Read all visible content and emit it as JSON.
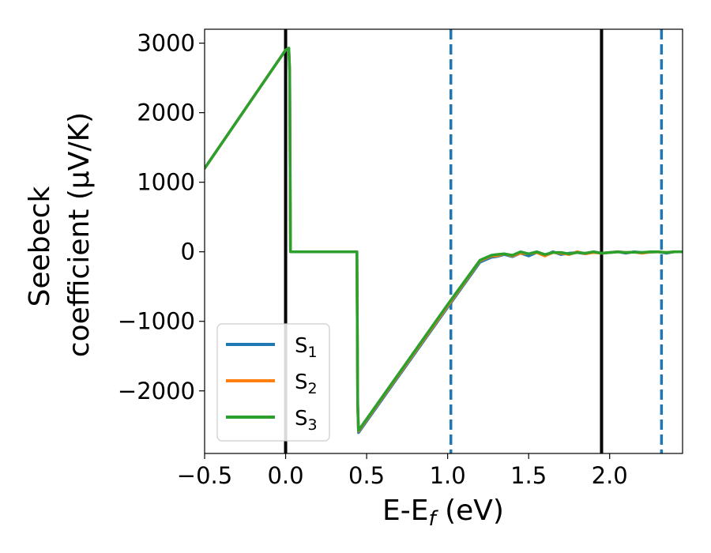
{
  "chart_data": {
    "type": "line",
    "xlabel": "E-E",
    "xlabel_sub": "f",
    "xlabel_unit": " (eV)",
    "ylabel_line1": "Seebeck",
    "ylabel_line2": "coefficient  (μV/K)",
    "xlim": [
      -0.5,
      2.45
    ],
    "ylim": [
      -2900,
      3200
    ],
    "x_ticks": [
      -0.5,
      0.0,
      0.5,
      1.0,
      1.5,
      2.0
    ],
    "x_tick_labels": [
      "−0.5",
      "0.0",
      "0.5",
      "1.0",
      "1.5",
      "2.0"
    ],
    "y_ticks": [
      3000,
      2000,
      1000,
      0,
      -1000,
      -2000
    ],
    "y_tick_labels": [
      "3000",
      "2000",
      "1000",
      "0",
      "−1000",
      "−2000"
    ],
    "grid": false,
    "legend_position": "lower-left",
    "vertical_lines": [
      {
        "x": 0.0,
        "style": "solid",
        "color": "#000000"
      },
      {
        "x": 1.95,
        "style": "solid",
        "color": "#000000"
      },
      {
        "x": 1.02,
        "style": "dashed",
        "color": "#1f77b4"
      },
      {
        "x": 2.32,
        "style": "dashed",
        "color": "#1f77b4"
      }
    ],
    "series": [
      {
        "name": "S",
        "subscript": "1",
        "color": "#1f77b4",
        "x": [
          -0.5,
          0.0,
          0.02,
          0.025,
          0.03,
          0.44,
          0.445,
          0.45,
          1.0,
          1.2,
          1.27,
          1.3,
          1.35,
          1.4,
          1.45,
          1.5,
          1.55,
          1.6,
          1.65,
          1.7,
          1.75,
          1.8,
          1.85,
          1.9,
          1.95,
          2.0,
          2.05,
          2.1,
          2.15,
          2.2,
          2.25,
          2.3,
          2.35,
          2.4,
          2.45
        ],
        "y": [
          1200,
          2900,
          2920,
          2600,
          0,
          0,
          -2200,
          -2600,
          -800,
          -150,
          -80,
          -70,
          -40,
          -70,
          -20,
          -60,
          -10,
          -50,
          0,
          -40,
          -20,
          -10,
          -30,
          0,
          -20,
          -10,
          0,
          -20,
          0,
          -10,
          -5,
          0,
          -20,
          0,
          0
        ]
      },
      {
        "name": "S",
        "subscript": "2",
        "color": "#ff7f0e",
        "x": [
          -0.5,
          0.0,
          0.02,
          0.025,
          0.03,
          0.44,
          0.445,
          0.45,
          1.0,
          1.2,
          1.27,
          1.3,
          1.35,
          1.4,
          1.45,
          1.5,
          1.55,
          1.6,
          1.65,
          1.7,
          1.75,
          1.8,
          1.85,
          1.9,
          1.95,
          2.0,
          2.05,
          2.1,
          2.15,
          2.2,
          2.25,
          2.3,
          2.35,
          2.4,
          2.45
        ],
        "y": [
          1200,
          2900,
          2920,
          2600,
          0,
          0,
          -2200,
          -2580,
          -780,
          -130,
          -60,
          -60,
          -30,
          -60,
          -20,
          -30,
          -10,
          -60,
          -10,
          -20,
          -40,
          0,
          -30,
          -10,
          -20,
          -10,
          0,
          -10,
          -5,
          -20,
          -5,
          0,
          -10,
          0,
          0
        ]
      },
      {
        "name": "S",
        "subscript": "3",
        "color": "#2ca02c",
        "x": [
          -0.5,
          0.0,
          0.02,
          0.025,
          0.03,
          0.44,
          0.445,
          0.45,
          1.0,
          1.2,
          1.27,
          1.3,
          1.35,
          1.4,
          1.45,
          1.5,
          1.55,
          1.6,
          1.65,
          1.7,
          1.75,
          1.8,
          1.85,
          1.9,
          1.95,
          2.0,
          2.05,
          2.1,
          2.15,
          2.2,
          2.25,
          2.3,
          2.35,
          2.4,
          2.45
        ],
        "y": [
          1200,
          2900,
          2930,
          2600,
          0,
          0,
          -2200,
          -2570,
          -760,
          -120,
          -50,
          -40,
          -30,
          -50,
          0,
          -30,
          0,
          -40,
          -10,
          -10,
          -30,
          -10,
          -20,
          0,
          -20,
          -10,
          0,
          -10,
          -5,
          -10,
          0,
          0,
          -10,
          0,
          0
        ]
      }
    ]
  }
}
